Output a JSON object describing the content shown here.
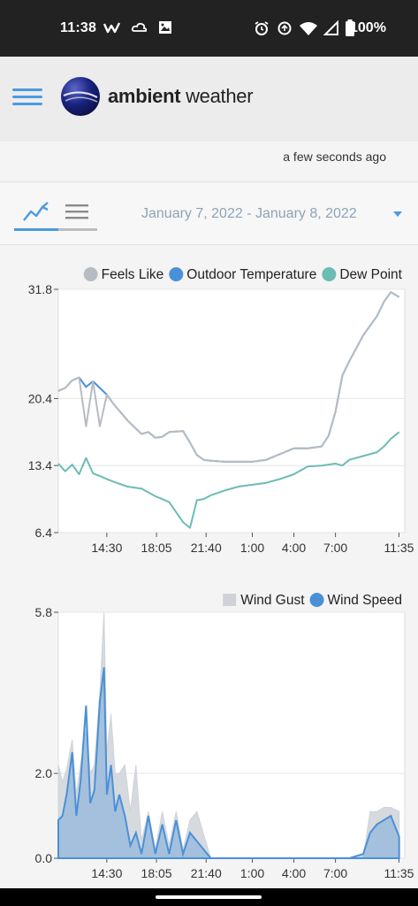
{
  "status_bar": {
    "time": "11:38",
    "battery": "100%",
    "icons": [
      "w-app-icon",
      "cloud-icon",
      "image-icon",
      "alarm-icon",
      "sync-icon",
      "wifi-icon",
      "signal-icon",
      "battery-icon"
    ]
  },
  "header": {
    "logo_bold": "ambient",
    "logo_light": "weather",
    "menu_icon": "hamburger-menu-icon",
    "accent": "#4a9be0"
  },
  "updated": {
    "text": "a few seconds ago"
  },
  "toolbar": {
    "date_range": "January 7, 2022 - January 8, 2022",
    "tabs": [
      "graph-icon",
      "table-list-icon"
    ]
  },
  "chart_data": [
    {
      "type": "line",
      "legend": [
        {
          "name": "Feels Like",
          "color": "#b7bcc2"
        },
        {
          "name": "Outdoor Temperature",
          "color": "#4a90d9"
        },
        {
          "name": "Dew Point",
          "color": "#6cbcb6"
        }
      ],
      "x_ticks": [
        "14:30",
        "18:05",
        "21:40",
        "1:00",
        "4:00",
        "7:00",
        "11:35"
      ],
      "y_ticks": [
        "31.8",
        "20.4",
        "13.4",
        "6.4"
      ],
      "x_hours": [
        11.0,
        11.5,
        12.0,
        12.5,
        13.0,
        13.5,
        14.0,
        14.5,
        15.0,
        16.0,
        17.0,
        17.5,
        18.0,
        18.5,
        19.0,
        20.0,
        20.5,
        21.0,
        21.5,
        22.0,
        23.0,
        24.0,
        25.0,
        26.0,
        27.0,
        28.0,
        29.0,
        30.0,
        30.5,
        31.0,
        31.5,
        32.0,
        33.0,
        34.0,
        34.5,
        35.0,
        35.6
      ],
      "series": [
        {
          "name": "Outdoor Temperature",
          "values": [
            21.2,
            21.5,
            22.3,
            22.6,
            21.6,
            22.2,
            21.5,
            20.8,
            19.8,
            18.1,
            16.7,
            16.9,
            16.3,
            16.4,
            16.9,
            17.0,
            15.8,
            14.5,
            14.0,
            13.9,
            13.8,
            13.8,
            13.8,
            14.0,
            14.6,
            15.2,
            15.2,
            15.4,
            16.5,
            19.0,
            22.8,
            24.3,
            27.0,
            29.0,
            30.5,
            31.5,
            31.0
          ]
        },
        {
          "name": "Feels Like",
          "values": [
            21.2,
            21.5,
            22.3,
            22.6,
            17.5,
            22.2,
            17.5,
            20.8,
            19.8,
            18.1,
            16.7,
            16.9,
            16.3,
            16.4,
            16.9,
            17.0,
            15.8,
            14.5,
            14.0,
            13.9,
            13.8,
            13.8,
            13.8,
            14.0,
            14.6,
            15.2,
            15.2,
            15.4,
            16.5,
            19.0,
            22.8,
            24.3,
            27.0,
            29.0,
            30.5,
            31.5,
            31.0
          ]
        },
        {
          "name": "Dew Point",
          "values": [
            13.6,
            12.8,
            13.5,
            12.5,
            14.2,
            12.6,
            12.3,
            12.0,
            11.7,
            11.2,
            11.0,
            10.6,
            10.2,
            9.9,
            9.6,
            7.5,
            6.9,
            9.8,
            9.9,
            10.3,
            10.8,
            11.2,
            11.4,
            11.6,
            12.0,
            12.5,
            13.3,
            13.4,
            13.5,
            13.6,
            13.4,
            14.0,
            14.4,
            14.8,
            15.4,
            16.2,
            16.9
          ]
        }
      ],
      "ylim": [
        6.4,
        31.8
      ],
      "xlim": [
        11.0,
        36.0
      ]
    },
    {
      "type": "area",
      "legend": [
        {
          "name": "Wind Gust",
          "color": "#cfd3d8"
        },
        {
          "name": "Wind Speed",
          "color": "#4a90d9"
        }
      ],
      "x_ticks": [
        "14:30",
        "18:05",
        "21:40",
        "1:00",
        "4:00",
        "7:00",
        "11:35"
      ],
      "y_ticks": [
        "5.8",
        "2.0",
        "0.0"
      ],
      "x_hours": [
        11.0,
        11.3,
        11.6,
        12.0,
        12.3,
        12.6,
        13.0,
        13.3,
        13.6,
        14.0,
        14.3,
        14.5,
        14.8,
        15.1,
        15.4,
        15.8,
        16.2,
        16.6,
        17.0,
        17.5,
        18.0,
        18.5,
        19.0,
        19.5,
        20.0,
        20.5,
        21.0,
        22.0,
        24.0,
        27.0,
        30.0,
        32.0,
        33.0,
        33.5,
        34.0,
        34.5,
        35.0,
        35.6
      ],
      "series": [
        {
          "name": "Wind Gust",
          "values": [
            2.2,
            1.8,
            2.1,
            2.8,
            1.5,
            2.2,
            3.0,
            2.0,
            2.2,
            3.9,
            5.8,
            2.5,
            3.4,
            2.0,
            2.0,
            2.2,
            1.1,
            2.2,
            0.4,
            1.1,
            0.2,
            1.1,
            0.3,
            1.1,
            0.2,
            0.9,
            1.1,
            0.0,
            0.0,
            0.0,
            0.0,
            0.0,
            0.0,
            1.1,
            1.1,
            1.2,
            1.2,
            1.1
          ]
        },
        {
          "name": "Wind Speed",
          "values": [
            0.9,
            1.0,
            1.5,
            2.5,
            1.0,
            1.8,
            3.6,
            1.3,
            1.6,
            3.7,
            4.5,
            1.5,
            2.2,
            1.1,
            1.5,
            1.0,
            0.3,
            0.6,
            0.1,
            1.0,
            0.1,
            0.8,
            0.1,
            0.9,
            0.1,
            0.6,
            0.4,
            0.0,
            0.0,
            0.0,
            0.0,
            0.0,
            0.1,
            0.6,
            0.8,
            0.9,
            1.0,
            0.5
          ]
        }
      ],
      "ylim": [
        0.0,
        5.8
      ],
      "xlim": [
        11.0,
        36.0
      ]
    }
  ]
}
